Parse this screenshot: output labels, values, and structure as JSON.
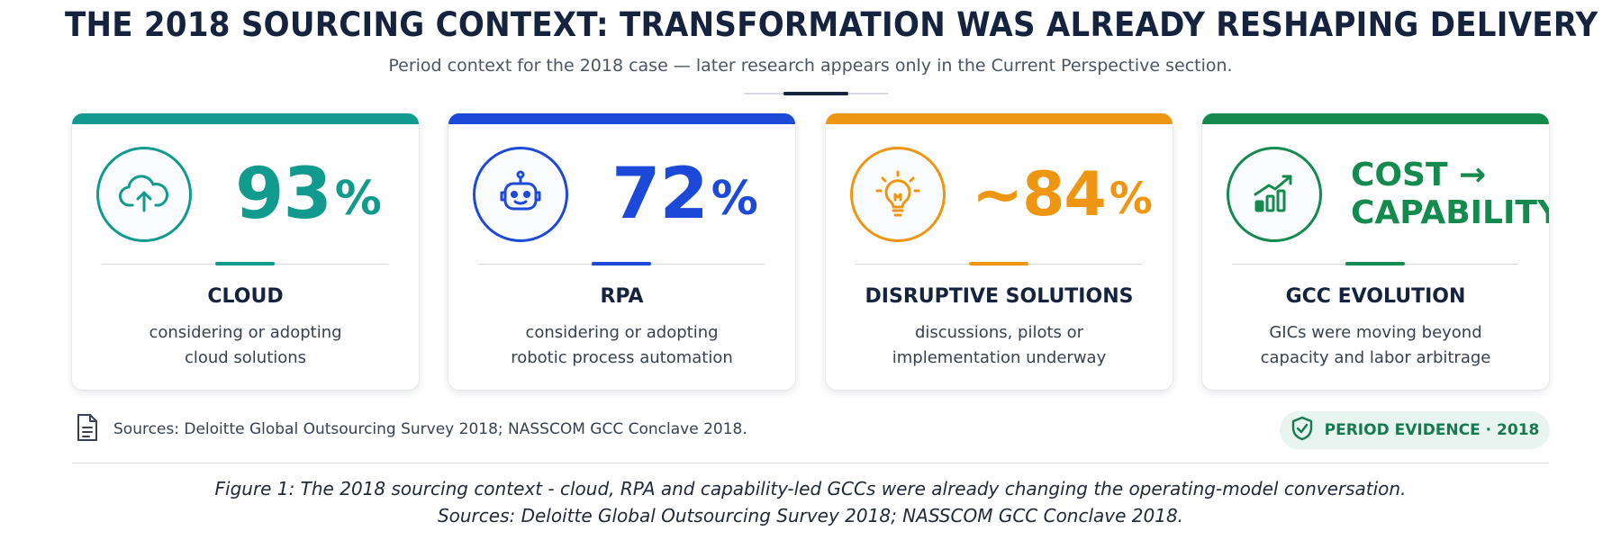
{
  "header": {
    "title": "THE 2018 SOURCING CONTEXT: TRANSFORMATION WAS ALREADY RESHAPING DELIVERY",
    "subtitle": "Period context for the 2018 case — later research appears only in the Current Perspective section."
  },
  "cards": [
    {
      "icon": "cloud-upload-icon",
      "color": "#119a8e",
      "stat_value": "93",
      "stat_unit": "%",
      "label": "CLOUD",
      "desc_line1": "considering or adopting",
      "desc_line2": "cloud solutions"
    },
    {
      "icon": "robot-icon",
      "color": "#1d49d8",
      "stat_value": "72",
      "stat_unit": "%",
      "label": "RPA",
      "desc_line1": "considering or adopting",
      "desc_line2": "robotic process automation"
    },
    {
      "icon": "lightbulb-icon",
      "color": "#ee9612",
      "stat_value": "~84",
      "stat_unit": "%",
      "label": "DISRUPTIVE SOLUTIONS",
      "desc_line1": "discussions, pilots or",
      "desc_line2": "implementation underway"
    },
    {
      "icon": "growth-chart-icon",
      "color": "#148a4f",
      "stat_line1": "COST →",
      "stat_line2": "CAPABILITY",
      "label": "GCC EVOLUTION",
      "desc_line1": "GICs were moving beyond",
      "desc_line2": "capacity and labor arbitrage"
    }
  ],
  "footer": {
    "sources_icon": "document-icon",
    "sources": "Sources: Deloitte Global Outsourcing Survey 2018; NASSCOM GCC Conclave 2018.",
    "badge_icon": "shield-check-icon",
    "badge": "PERIOD EVIDENCE · 2018",
    "badge_color": "#157a4f"
  },
  "caption": {
    "line1": "Figure 1: The 2018 sourcing context - cloud, RPA and capability-led GCCs were already changing the operating-model conversation.",
    "line2": "Sources: Deloitte Global Outsourcing Survey 2018; NASSCOM GCC Conclave 2018."
  }
}
